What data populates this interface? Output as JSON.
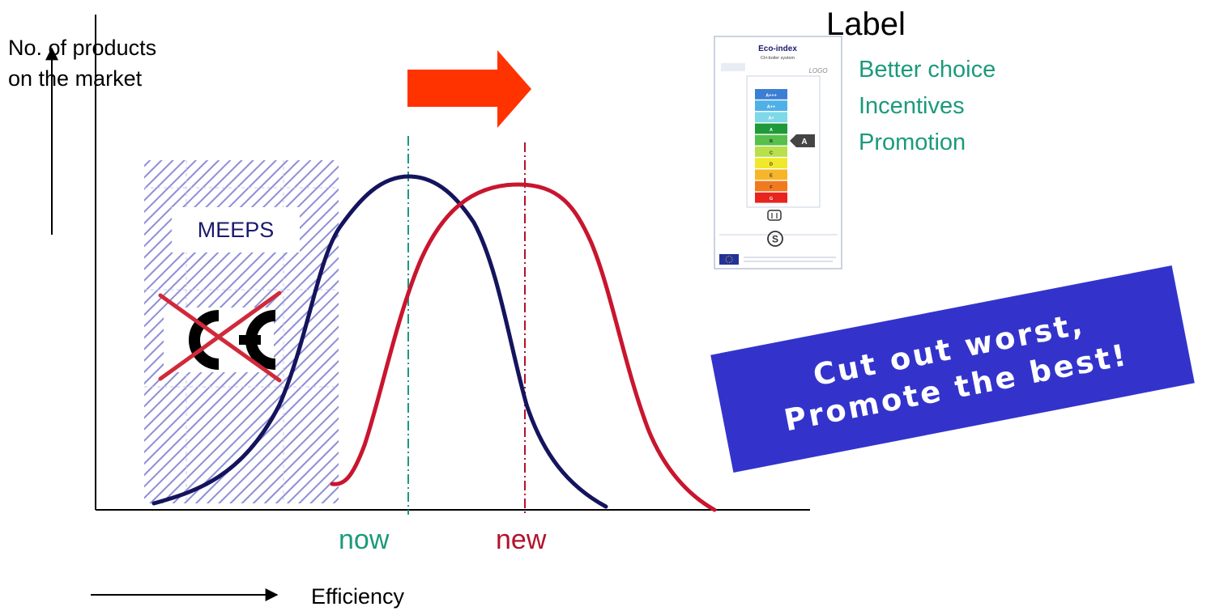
{
  "y_axis_label": [
    "No. of products",
    "on the market"
  ],
  "x_axis_label": "Efficiency",
  "meeps_label": "MEEPS",
  "markers": {
    "now": {
      "label": "now",
      "color": "#1b9a7c"
    },
    "new": {
      "label": "new",
      "color": "#b3122a"
    }
  },
  "curves": {
    "current": {
      "color": "#14145e"
    },
    "future": {
      "color": "#c8162e"
    }
  },
  "shift_arrow_color": "#ff3300",
  "label_section": {
    "title": "Label",
    "benefits": [
      "Better choice",
      "Incentives",
      "Promotion"
    ],
    "benefit_color": "#1b9a7c"
  },
  "eco_label": {
    "title": "Eco-index",
    "subtitle": "CH-boiler system",
    "logo": "LOGO",
    "classes": [
      "A+++",
      "A++",
      "A+",
      "A",
      "B",
      "C",
      "D",
      "E",
      "F",
      "G"
    ],
    "class_colors": [
      "#3b7fd4",
      "#4fb0e8",
      "#7fd8e8",
      "#1f9a3a",
      "#56c04a",
      "#b8e04a",
      "#f0e82a",
      "#f7b52a",
      "#f27a1e",
      "#e8241e"
    ],
    "selected_class": "A"
  },
  "banner": {
    "line1": "Cut out worst,",
    "line2": "Promote the best!",
    "color": "#3333cc"
  },
  "ce_mark": {
    "text": "CE",
    "cross_color": "#d02a3a"
  }
}
